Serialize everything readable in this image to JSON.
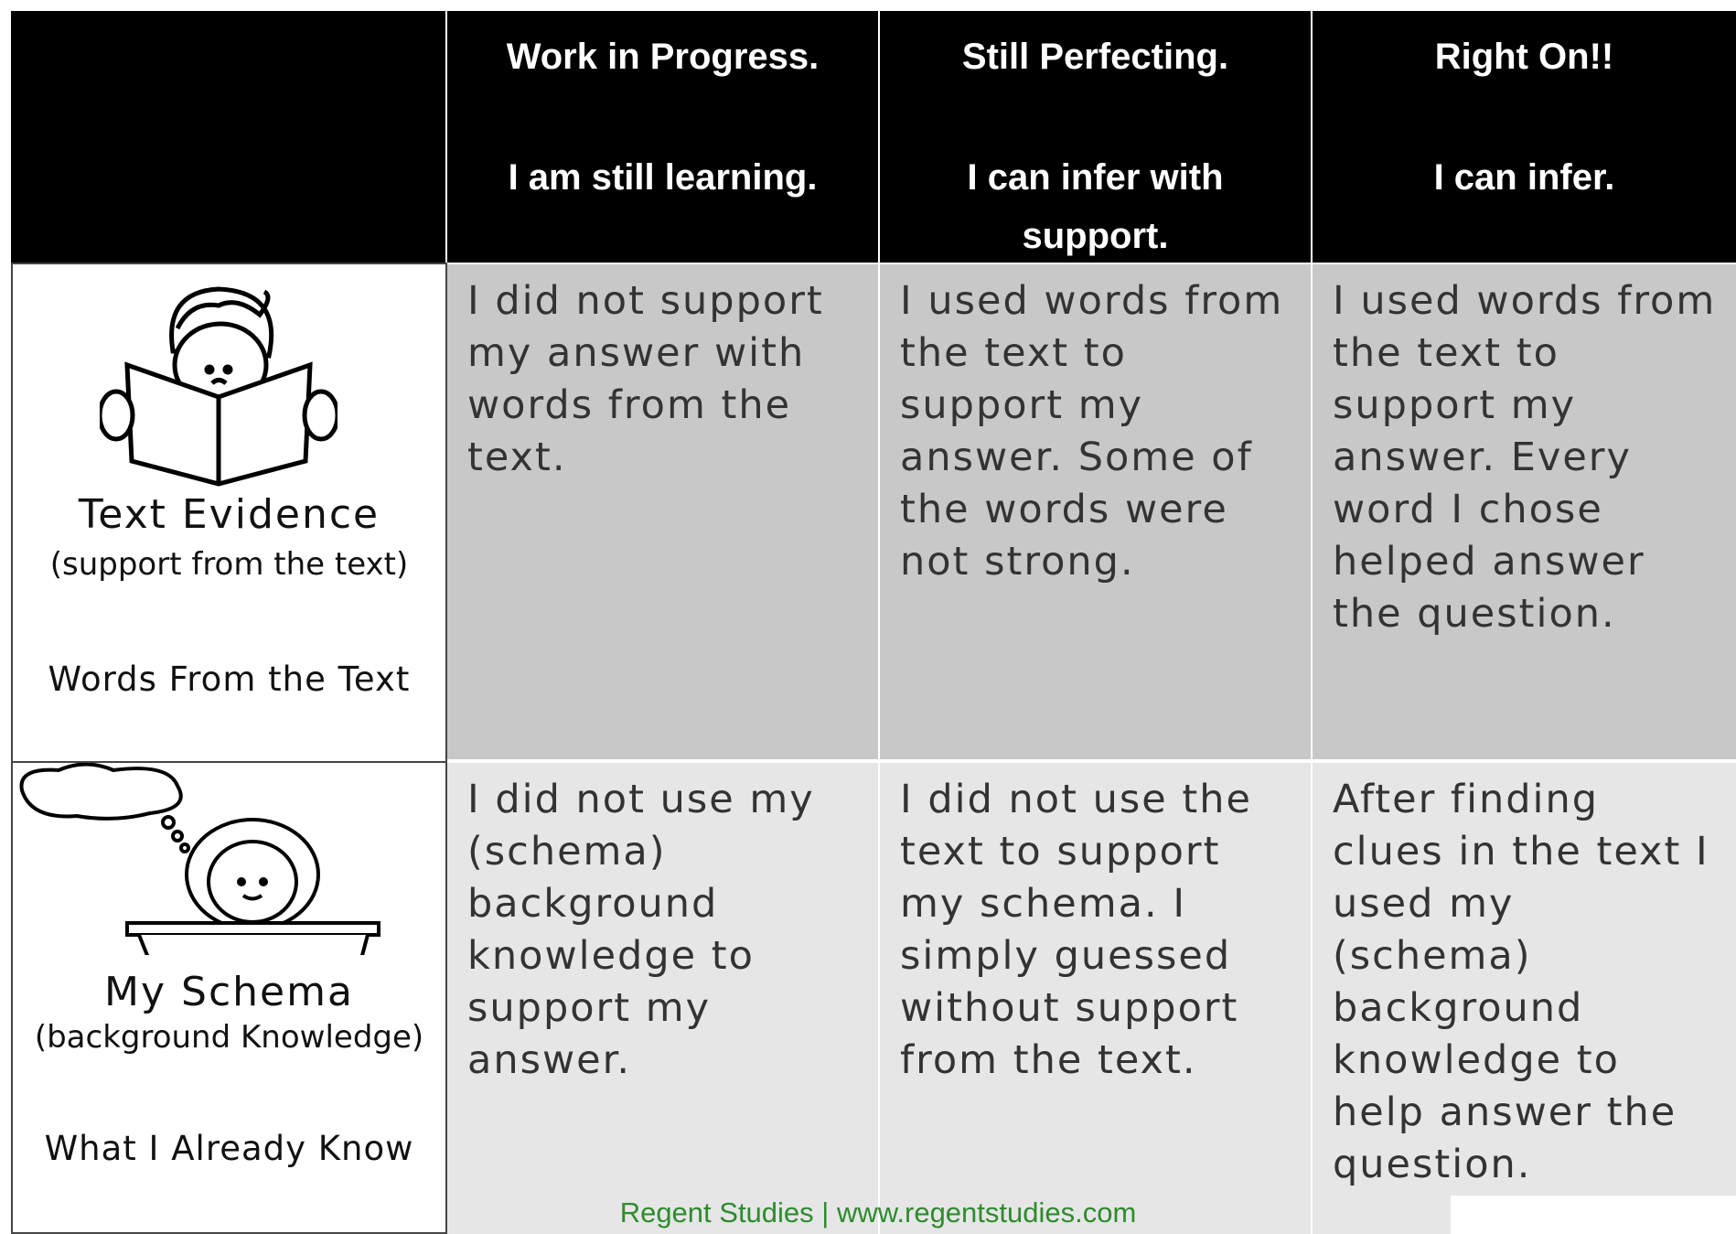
{
  "table": {
    "columns": [
      {
        "title": "Work in Progress.",
        "subtitle": "I am still learning."
      },
      {
        "title": "Still Perfecting.",
        "subtitle": "I can infer with support."
      },
      {
        "title": "Right On!!",
        "subtitle": "I can infer."
      }
    ],
    "rows": [
      {
        "label": "Text Evidence",
        "sublabel": "(support from the text)",
        "caption": "Words From the Text",
        "cells": [
          "I did not support my answer with words from the text.",
          "I used words from the text to support my answer.  Some of the words were not strong.",
          "I used words from the text to support my answer.  Every word I chose helped answer the question."
        ]
      },
      {
        "label": "My Schema",
        "sublabel": "(background Knowledge)",
        "caption": "What I Already Know",
        "cells": [
          "I did not use my (schema) background knowledge to support my answer.",
          "I did not use the text to support my schema.  I simply guessed without support from the text.",
          "After finding clues in the text I used my (schema) background knowledge to help answer the question."
        ]
      }
    ]
  },
  "footer": "Regent Studies | www.regentstudies.com"
}
